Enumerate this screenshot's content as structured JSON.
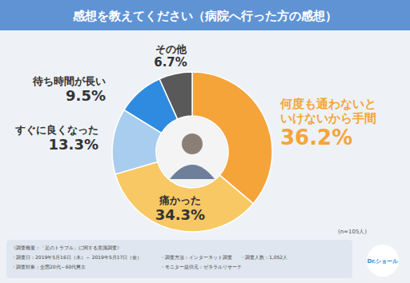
{
  "chart_data": {
    "type": "pie",
    "title": "感想を教えてください（病院へ行った方の感想）",
    "categories": [
      "何度も通わないといけないから手間",
      "痛かった",
      "すぐに良くなった",
      "待ち時間が長い",
      "その他"
    ],
    "values": [
      36.2,
      34.3,
      13.3,
      9.5,
      6.7
    ],
    "value_labels": [
      "36.2%",
      "34.3%",
      "13.3%",
      "9.5%",
      "6.7%"
    ],
    "colors": [
      "#f5a43a",
      "#f8c865",
      "#a9cdee",
      "#2f8be0",
      "#595959"
    ],
    "data_labels": true,
    "annotations": [
      "(n=105人)"
    ],
    "footnotes": [
      "《調査概要：「足のトラブル」に関する意識調査》",
      "・調査日：2019年5月16日（木）～ 2019年5月17日（金）",
      "・調査方法：インターネット調査",
      "・調査人数：1,052人",
      "・調査対象：全国20代～60代男女",
      "・モニター提供元：ゼネラルリサーチ"
    ],
    "brand": "Dr.ショール"
  }
}
